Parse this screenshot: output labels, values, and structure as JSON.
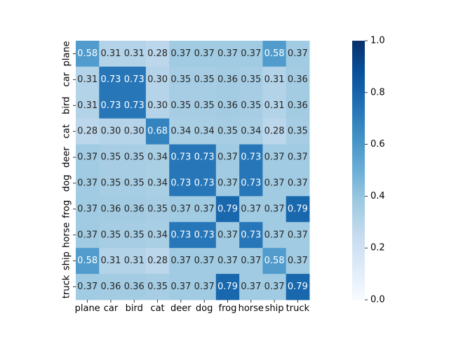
{
  "chart_data": {
    "type": "heatmap",
    "rows": [
      "plane",
      "car",
      "bird",
      "cat",
      "deer",
      "dog",
      "frog",
      "horse",
      "ship",
      "truck"
    ],
    "columns": [
      "plane",
      "car",
      "bird",
      "cat",
      "deer",
      "dog",
      "frog",
      "horse",
      "ship",
      "truck"
    ],
    "values": [
      [
        0.58,
        0.31,
        0.31,
        0.28,
        0.37,
        0.37,
        0.37,
        0.37,
        0.58,
        0.37
      ],
      [
        0.31,
        0.73,
        0.73,
        0.3,
        0.35,
        0.35,
        0.36,
        0.35,
        0.31,
        0.36
      ],
      [
        0.31,
        0.73,
        0.73,
        0.3,
        0.35,
        0.35,
        0.36,
        0.35,
        0.31,
        0.36
      ],
      [
        0.28,
        0.3,
        0.3,
        0.68,
        0.34,
        0.34,
        0.35,
        0.34,
        0.28,
        0.35
      ],
      [
        0.37,
        0.35,
        0.35,
        0.34,
        0.73,
        0.73,
        0.37,
        0.73,
        0.37,
        0.37
      ],
      [
        0.37,
        0.35,
        0.35,
        0.34,
        0.73,
        0.73,
        0.37,
        0.73,
        0.37,
        0.37
      ],
      [
        0.37,
        0.36,
        0.36,
        0.35,
        0.37,
        0.37,
        0.79,
        0.37,
        0.37,
        0.79
      ],
      [
        0.37,
        0.35,
        0.35,
        0.34,
        0.73,
        0.73,
        0.37,
        0.73,
        0.37,
        0.37
      ],
      [
        0.58,
        0.31,
        0.31,
        0.28,
        0.37,
        0.37,
        0.37,
        0.37,
        0.58,
        0.37
      ],
      [
        0.37,
        0.36,
        0.36,
        0.35,
        0.37,
        0.37,
        0.79,
        0.37,
        0.37,
        0.79
      ]
    ],
    "value_format": "2 decimals",
    "colorbar": {
      "range": [
        0.0,
        1.0
      ],
      "ticks": [
        0.0,
        0.2,
        0.4,
        0.6,
        0.8,
        1.0
      ],
      "tick_labels": [
        "0.0",
        "0.2",
        "0.4",
        "0.6",
        "0.8",
        "1.0"
      ],
      "colormap": "Blues",
      "stops": [
        "#f7fbff",
        "#deebf7",
        "#c6dbef",
        "#9ecae1",
        "#6baed6",
        "#4292c6",
        "#2171b5",
        "#08519c",
        "#08306b"
      ]
    },
    "annotation_colors": {
      "dark_text": "#262626",
      "light_text": "#ffffff"
    },
    "title": "",
    "xlabel": "",
    "ylabel": ""
  }
}
